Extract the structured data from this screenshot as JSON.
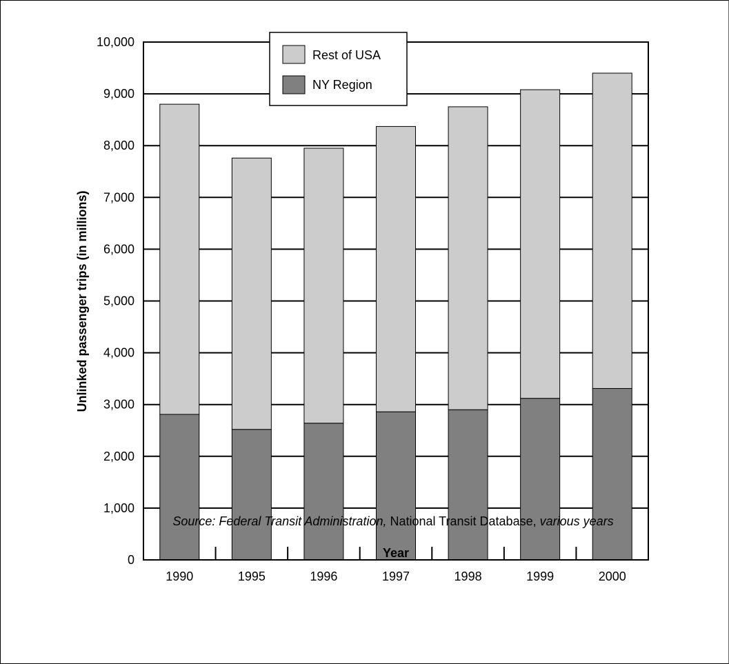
{
  "chart_data": {
    "type": "bar",
    "stacked": true,
    "categories": [
      "1990",
      "1995",
      "1996",
      "1997",
      "1998",
      "1999",
      "2000"
    ],
    "series": [
      {
        "name": "NY Region",
        "color": "#808080",
        "values": [
          2810,
          2520,
          2640,
          2860,
          2900,
          3120,
          3310
        ]
      },
      {
        "name": "Rest of USA",
        "color": "#cccccc",
        "values": [
          5990,
          5240,
          5310,
          5510,
          5850,
          5960,
          6090
        ]
      }
    ],
    "legend_order": [
      "Rest of USA",
      "NY Region"
    ],
    "legend_position": "top-left inside plot",
    "xlabel": "Year",
    "ylabel": "Unlinked passenger trips (in millions)",
    "ylim": [
      0,
      10000
    ],
    "yticks": [
      0,
      1000,
      2000,
      3000,
      4000,
      5000,
      6000,
      7000,
      8000,
      9000,
      10000
    ],
    "ytick_labels": [
      "0",
      "1,000",
      "2,000",
      "3,000",
      "4,000",
      "5,000",
      "6,000",
      "7,000",
      "8,000",
      "9,000",
      "10,000"
    ],
    "grid": "horizontal",
    "source": {
      "part1": "Source: Federal Transit Administration,",
      "part2": " National Transit Database, ",
      "part3": "various years"
    }
  }
}
